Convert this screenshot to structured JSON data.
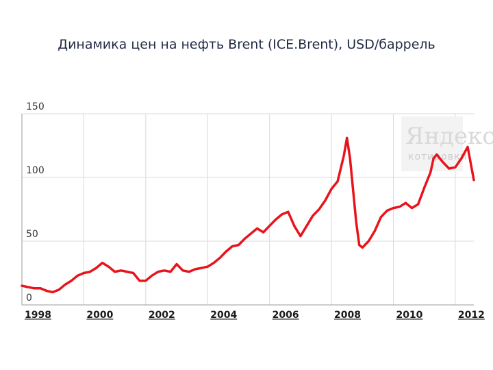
{
  "title": "Динамика цен на нефть Brent (ICE.Brent), USD/баррель",
  "watermark": {
    "logo": "Яндекс",
    "subtitle": "котировки"
  },
  "colors": {
    "line": "#e8141b",
    "grid": "#d9d9d9",
    "axis": "#9a9a9a"
  },
  "chart_data": {
    "type": "line",
    "title": "Динамика цен на нефть Brent (ICE.Brent), USD/баррель",
    "xlabel": "",
    "ylabel": "",
    "xlim": [
      1998.0,
      2012.6
    ],
    "ylim": [
      0,
      150
    ],
    "grid": true,
    "yticks": [
      0,
      50,
      100,
      150
    ],
    "ytick_labels": [
      "0",
      "50",
      "100",
      "150"
    ],
    "xticks": [
      1998,
      2000,
      2002,
      2004,
      2006,
      2008,
      2010,
      2012
    ],
    "xtick_labels": [
      "1998",
      "2000",
      "2002",
      "2004",
      "2006",
      "2008",
      "2010",
      "2012"
    ],
    "series": [
      {
        "x": [
          1998.0,
          1998.2,
          1998.4,
          1998.6,
          1998.8,
          1999.0,
          1999.2,
          1999.4,
          1999.6,
          1999.8,
          2000.0,
          2000.2,
          2000.4,
          2000.6,
          2000.8,
          2001.0,
          2001.2,
          2001.4,
          2001.6,
          2001.8,
          2002.0,
          2002.2,
          2002.4,
          2002.6,
          2002.8,
          2003.0,
          2003.2,
          2003.4,
          2003.6,
          2003.8,
          2004.0,
          2004.2,
          2004.4,
          2004.6,
          2004.8,
          2005.0,
          2005.2,
          2005.4,
          2005.6,
          2005.8,
          2006.0,
          2006.2,
          2006.4,
          2006.6,
          2006.8,
          2007.0,
          2007.2,
          2007.4,
          2007.6,
          2007.8,
          2008.0,
          2008.2,
          2008.4,
          2008.5,
          2008.6,
          2008.8,
          2008.9,
          2009.0,
          2009.2,
          2009.4,
          2009.6,
          2009.8,
          2010.0,
          2010.2,
          2010.4,
          2010.6,
          2010.8,
          2011.0,
          2011.2,
          2011.3,
          2011.4,
          2011.6,
          2011.8,
          2012.0,
          2012.2,
          2012.4,
          2012.6
        ],
        "values": [
          15,
          14,
          13,
          13,
          11,
          10,
          12,
          16,
          19,
          23,
          25,
          26,
          29,
          33,
          30,
          26,
          27,
          26,
          25,
          19,
          19,
          23,
          26,
          27,
          26,
          32,
          27,
          26,
          28,
          29,
          30,
          33,
          37,
          42,
          46,
          47,
          52,
          56,
          60,
          57,
          62,
          67,
          71,
          73,
          62,
          54,
          62,
          70,
          75,
          82,
          91,
          97,
          117,
          131,
          115,
          65,
          47,
          45,
          50,
          58,
          69,
          74,
          76,
          77,
          80,
          76,
          79,
          92,
          104,
          115,
          118,
          112,
          107,
          108,
          115,
          124,
          98
        ]
      }
    ]
  }
}
